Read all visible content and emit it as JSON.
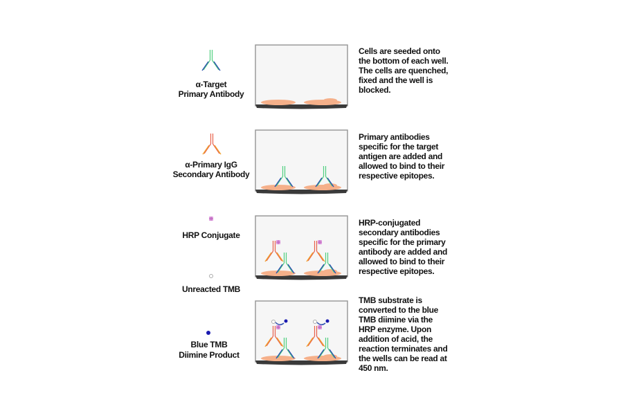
{
  "legend": {
    "primary_antibody": [
      "α-Target",
      "Primary Antibody"
    ],
    "secondary_antibody": [
      "α-Primary IgG",
      "Secondary Antibody"
    ],
    "hrp": [
      "HRP Conjugate"
    ],
    "unreacted_tmb": [
      "Unreacted TMB"
    ],
    "blue_tmb": [
      "Blue TMB",
      "Diimine Product"
    ]
  },
  "steps": [
    {
      "lines": [
        "Cells are seeded onto",
        "the bottom of each well.",
        "The cells are quenched,",
        "fixed and the well is",
        "blocked."
      ]
    },
    {
      "lines": [
        "Primary antibodies",
        "specific for the target",
        "antigen are added and",
        "allowed to bind to their",
        "respective epitopes."
      ]
    },
    {
      "lines": [
        "HRP-conjugated",
        "secondary antibodies",
        "specific for the primary",
        "antibody are added and",
        "allowed to bind to their",
        "respective epitopes."
      ]
    },
    {
      "lines": [
        "TMB substrate is",
        "converted to the blue",
        "TMB diimine via the",
        "HRP enzyme. Upon",
        "addition of acid, the",
        "reaction terminates and",
        "the wells can be read at",
        "450 nm."
      ]
    }
  ],
  "colors": {
    "primary_heavy": "#4fcf7f",
    "primary_light": "#2e4fb0",
    "secondary_heavy": "#e8604a",
    "secondary_light": "#f0a030",
    "hrp": "#d070d0",
    "tmb_blue": "#1a1ab0",
    "cells": "#f5b08a",
    "well_base": "#333333"
  }
}
